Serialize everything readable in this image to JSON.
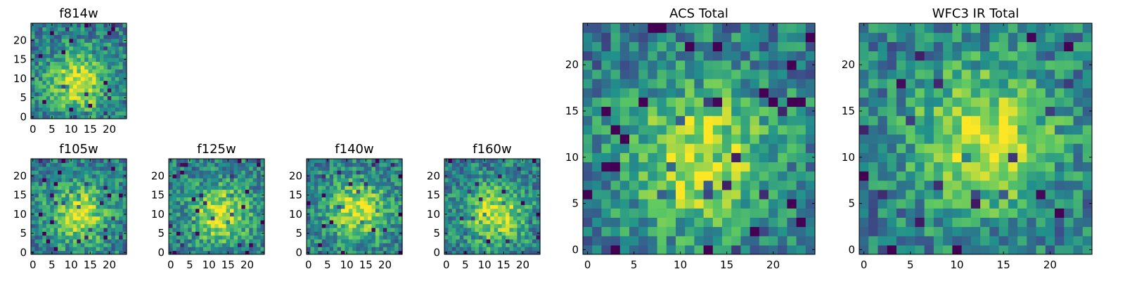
{
  "chart_data": [
    {
      "type": "heatmap",
      "title": "f814w",
      "xticks": [
        0,
        5,
        10,
        15,
        20
      ],
      "yticks": [
        0,
        5,
        10,
        15,
        20
      ],
      "xlim": [
        -0.5,
        24.5
      ],
      "ylim": [
        -0.5,
        24.5
      ],
      "grid_size": 25,
      "colormap": "viridis",
      "value_range": [
        0,
        1
      ],
      "peak": {
        "x": 12,
        "y": 9
      },
      "noise_seed": 11
    },
    {
      "type": "heatmap",
      "title": "f105w",
      "xticks": [
        0,
        5,
        10,
        15,
        20
      ],
      "yticks": [
        0,
        5,
        10,
        15,
        20
      ],
      "xlim": [
        -0.5,
        24.5
      ],
      "ylim": [
        -0.5,
        24.5
      ],
      "grid_size": 25,
      "colormap": "viridis",
      "value_range": [
        0,
        1
      ],
      "peak": {
        "x": 12,
        "y": 10
      },
      "noise_seed": 23
    },
    {
      "type": "heatmap",
      "title": "f125w",
      "xticks": [
        0,
        5,
        10,
        15,
        20
      ],
      "yticks": [
        0,
        5,
        10,
        15,
        20
      ],
      "xlim": [
        -0.5,
        24.5
      ],
      "ylim": [
        -0.5,
        24.5
      ],
      "grid_size": 25,
      "colormap": "viridis",
      "value_range": [
        0,
        1
      ],
      "peak": {
        "x": 13,
        "y": 10
      },
      "noise_seed": 37
    },
    {
      "type": "heatmap",
      "title": "f140w",
      "xticks": [
        0,
        5,
        10,
        15,
        20
      ],
      "yticks": [
        0,
        5,
        10,
        15,
        20
      ],
      "xlim": [
        -0.5,
        24.5
      ],
      "ylim": [
        -0.5,
        24.5
      ],
      "grid_size": 25,
      "colormap": "viridis",
      "value_range": [
        0,
        1
      ],
      "peak": {
        "x": 13,
        "y": 11
      },
      "noise_seed": 41
    },
    {
      "type": "heatmap",
      "title": "f160w",
      "xticks": [
        0,
        5,
        10,
        15,
        20
      ],
      "yticks": [
        0,
        5,
        10,
        15,
        20
      ],
      "xlim": [
        -0.5,
        24.5
      ],
      "ylim": [
        -0.5,
        24.5
      ],
      "grid_size": 25,
      "colormap": "viridis",
      "value_range": [
        0,
        1
      ],
      "peak": {
        "x": 13,
        "y": 10
      },
      "noise_seed": 53
    },
    {
      "type": "heatmap",
      "title": "ACS Total",
      "xticks": [
        0,
        5,
        10,
        15,
        20
      ],
      "yticks": [
        0,
        5,
        10,
        15,
        20
      ],
      "xlim": [
        -0.5,
        24.5
      ],
      "ylim": [
        -0.5,
        24.5
      ],
      "grid_size": 25,
      "colormap": "viridis",
      "value_range": [
        0,
        1
      ],
      "peak": {
        "x": 12,
        "y": 10
      },
      "noise_seed": 67
    },
    {
      "type": "heatmap",
      "title": "WFC3 IR Total",
      "xticks": [
        0,
        5,
        10,
        15,
        20
      ],
      "yticks": [
        0,
        5,
        10,
        15,
        20
      ],
      "xlim": [
        -0.5,
        24.5
      ],
      "ylim": [
        -0.5,
        24.5
      ],
      "grid_size": 25,
      "colormap": "viridis",
      "value_range": [
        0,
        1
      ],
      "peak": {
        "x": 13,
        "y": 12
      },
      "noise_seed": 79
    }
  ],
  "colormap_stops": [
    "#440154",
    "#3b528b",
    "#21918c",
    "#5ec962",
    "#fde725"
  ]
}
